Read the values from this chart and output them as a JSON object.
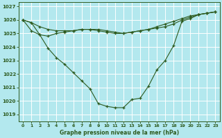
{
  "title": "Graphe pression niveau de la mer (hPa)",
  "background_color": "#b3e8ee",
  "grid_color": "#ffffff",
  "line_color": "#2d5a1e",
  "xlim": [
    -0.5,
    23.5
  ],
  "ylim": [
    1018.5,
    1027.3
  ],
  "xticks": [
    0,
    1,
    2,
    3,
    4,
    5,
    6,
    7,
    8,
    9,
    10,
    11,
    12,
    13,
    14,
    15,
    16,
    17,
    18,
    19,
    20,
    21,
    22,
    23
  ],
  "yticks": [
    1019,
    1020,
    1021,
    1022,
    1023,
    1024,
    1025,
    1026,
    1027
  ],
  "series_flat": [
    1026.0,
    1025.8,
    1025.5,
    1025.3,
    1025.2,
    1025.2,
    1025.2,
    1025.3,
    1025.3,
    1025.3,
    1025.2,
    1025.1,
    1025.0,
    1025.1,
    1025.2,
    1025.3,
    1025.4,
    1025.5,
    1025.7,
    1026.0,
    1026.2,
    1026.4,
    1026.5,
    1026.6
  ],
  "series_mid": [
    1026.0,
    1025.2,
    1024.9,
    1024.8,
    1025.0,
    1025.1,
    1025.2,
    1025.3,
    1025.3,
    1025.2,
    1025.1,
    1025.0,
    1025.0,
    1025.1,
    1025.2,
    1025.3,
    1025.5,
    1025.7,
    1025.9,
    1026.1,
    1026.3,
    1026.4,
    1026.5,
    1026.6
  ],
  "series_deep": [
    1026.0,
    1025.8,
    1024.9,
    1023.9,
    1023.2,
    1022.7,
    1022.1,
    1021.5,
    1020.9,
    1019.8,
    1019.6,
    1019.5,
    1019.5,
    1020.1,
    1020.2,
    1021.1,
    1022.3,
    1023.0,
    1024.1,
    1025.9,
    1026.1,
    1026.4,
    1026.5,
    1026.6
  ]
}
